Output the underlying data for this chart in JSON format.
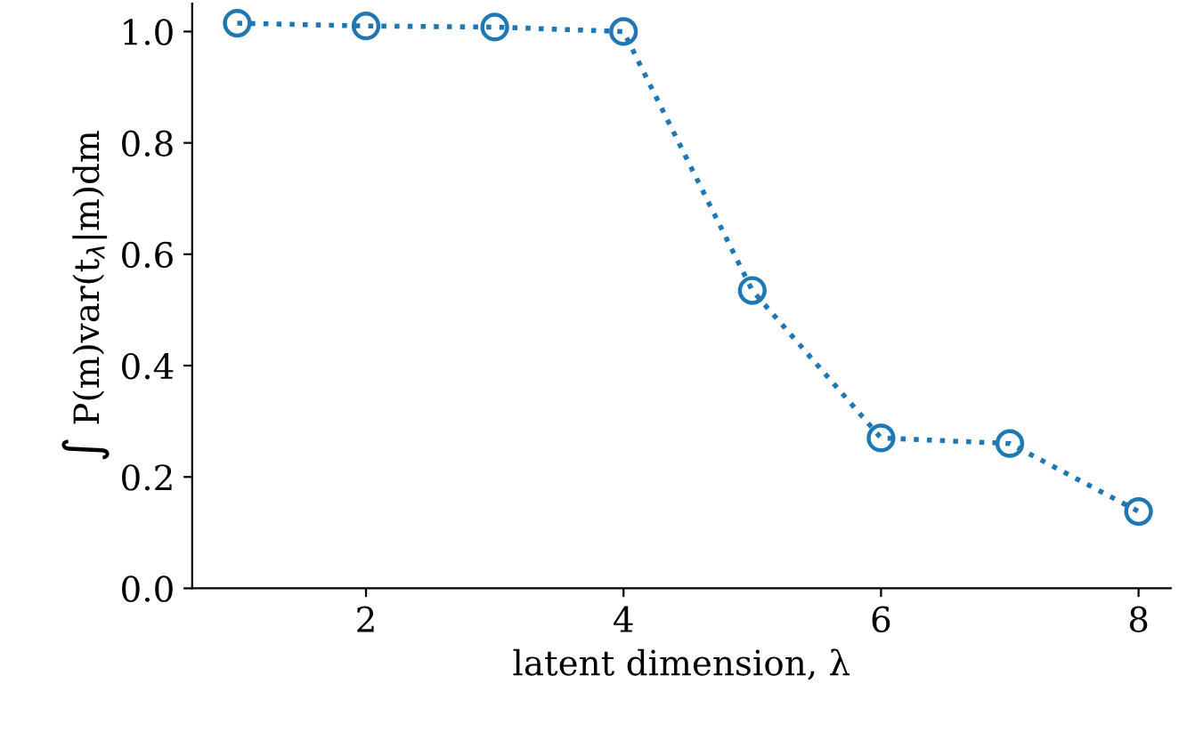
{
  "chart_data": {
    "type": "line",
    "xlabel": "latent dimension, λ",
    "ylabel": "∫ P(m)var(t$_{λ}$|m)dm",
    "x": [
      1,
      2,
      3,
      4,
      5,
      6,
      7,
      8
    ],
    "series": [
      {
        "color": "#1f77b4",
        "values": [
          1.015,
          1.01,
          1.008,
          1.0,
          0.535,
          0.27,
          0.26,
          0.138
        ]
      }
    ],
    "xlim": [
      0.65,
      8.25
    ],
    "ylim": [
      0,
      1.05
    ],
    "xticks": [
      2,
      4,
      6,
      8
    ],
    "yticks": [
      {
        "value": 0,
        "label": "0.0"
      },
      {
        "value": 0.2,
        "label": "0.2"
      },
      {
        "value": 0.4,
        "label": "0.4"
      },
      {
        "value": 0.6,
        "label": "0.6"
      },
      {
        "value": 0.8,
        "label": "0.8"
      },
      {
        "value": 1.0,
        "label": "1.0"
      }
    ],
    "grid": false,
    "legend": false,
    "marker": "circle",
    "line_style": "dotted"
  }
}
